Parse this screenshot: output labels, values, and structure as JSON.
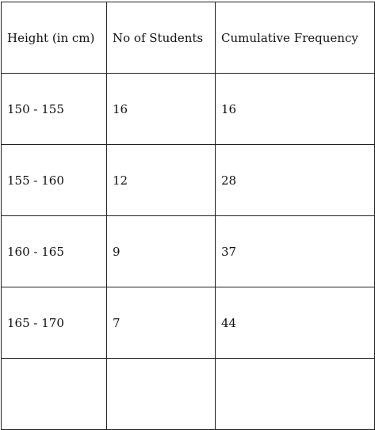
{
  "table": {
    "headers": [
      "Height (in cm)",
      "No of Students",
      "Cumulative Frequency"
    ],
    "rows": [
      [
        "150 - 155",
        "16",
        "16"
      ],
      [
        "155 - 160",
        "12",
        "28"
      ],
      [
        "160 - 165",
        "9",
        "37"
      ],
      [
        "165 - 170",
        "7",
        "44"
      ],
      [
        "",
        "",
        ""
      ]
    ]
  }
}
